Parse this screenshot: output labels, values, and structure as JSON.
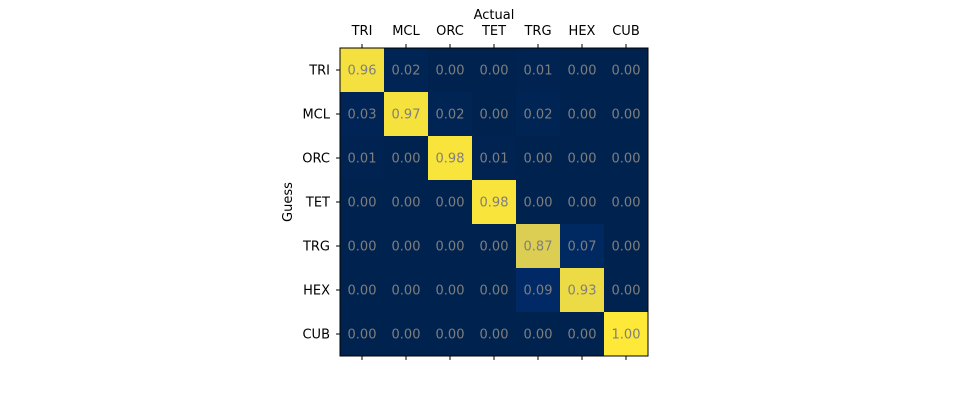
{
  "chart_data": {
    "type": "heatmap",
    "title": "",
    "xlabel": "Actual",
    "ylabel": "Guess",
    "x_categories": [
      "TRI",
      "MCL",
      "ORC",
      "TET",
      "TRG",
      "HEX",
      "CUB"
    ],
    "y_categories": [
      "TRI",
      "MCL",
      "ORC",
      "TET",
      "TRG",
      "HEX",
      "CUB"
    ],
    "xlabel_position": "top",
    "value_range": [
      0,
      1
    ],
    "colormap": "cividis",
    "annotation_format": "2 decimals",
    "values": [
      [
        0.96,
        0.02,
        0.0,
        0.0,
        0.01,
        0.0,
        0.0
      ],
      [
        0.03,
        0.97,
        0.02,
        0.0,
        0.02,
        0.0,
        0.0
      ],
      [
        0.01,
        0.0,
        0.98,
        0.01,
        0.0,
        0.0,
        0.0
      ],
      [
        0.0,
        0.0,
        0.0,
        0.98,
        0.0,
        0.0,
        0.0
      ],
      [
        0.0,
        0.0,
        0.0,
        0.0,
        0.87,
        0.07,
        0.0
      ],
      [
        0.0,
        0.0,
        0.0,
        0.0,
        0.09,
        0.93,
        0.0
      ],
      [
        0.0,
        0.0,
        0.0,
        0.0,
        0.0,
        0.0,
        1.0
      ]
    ],
    "colors": {
      "annotation_text": "#7f7f7f",
      "low": "#00224e",
      "high": "#fee838"
    }
  }
}
